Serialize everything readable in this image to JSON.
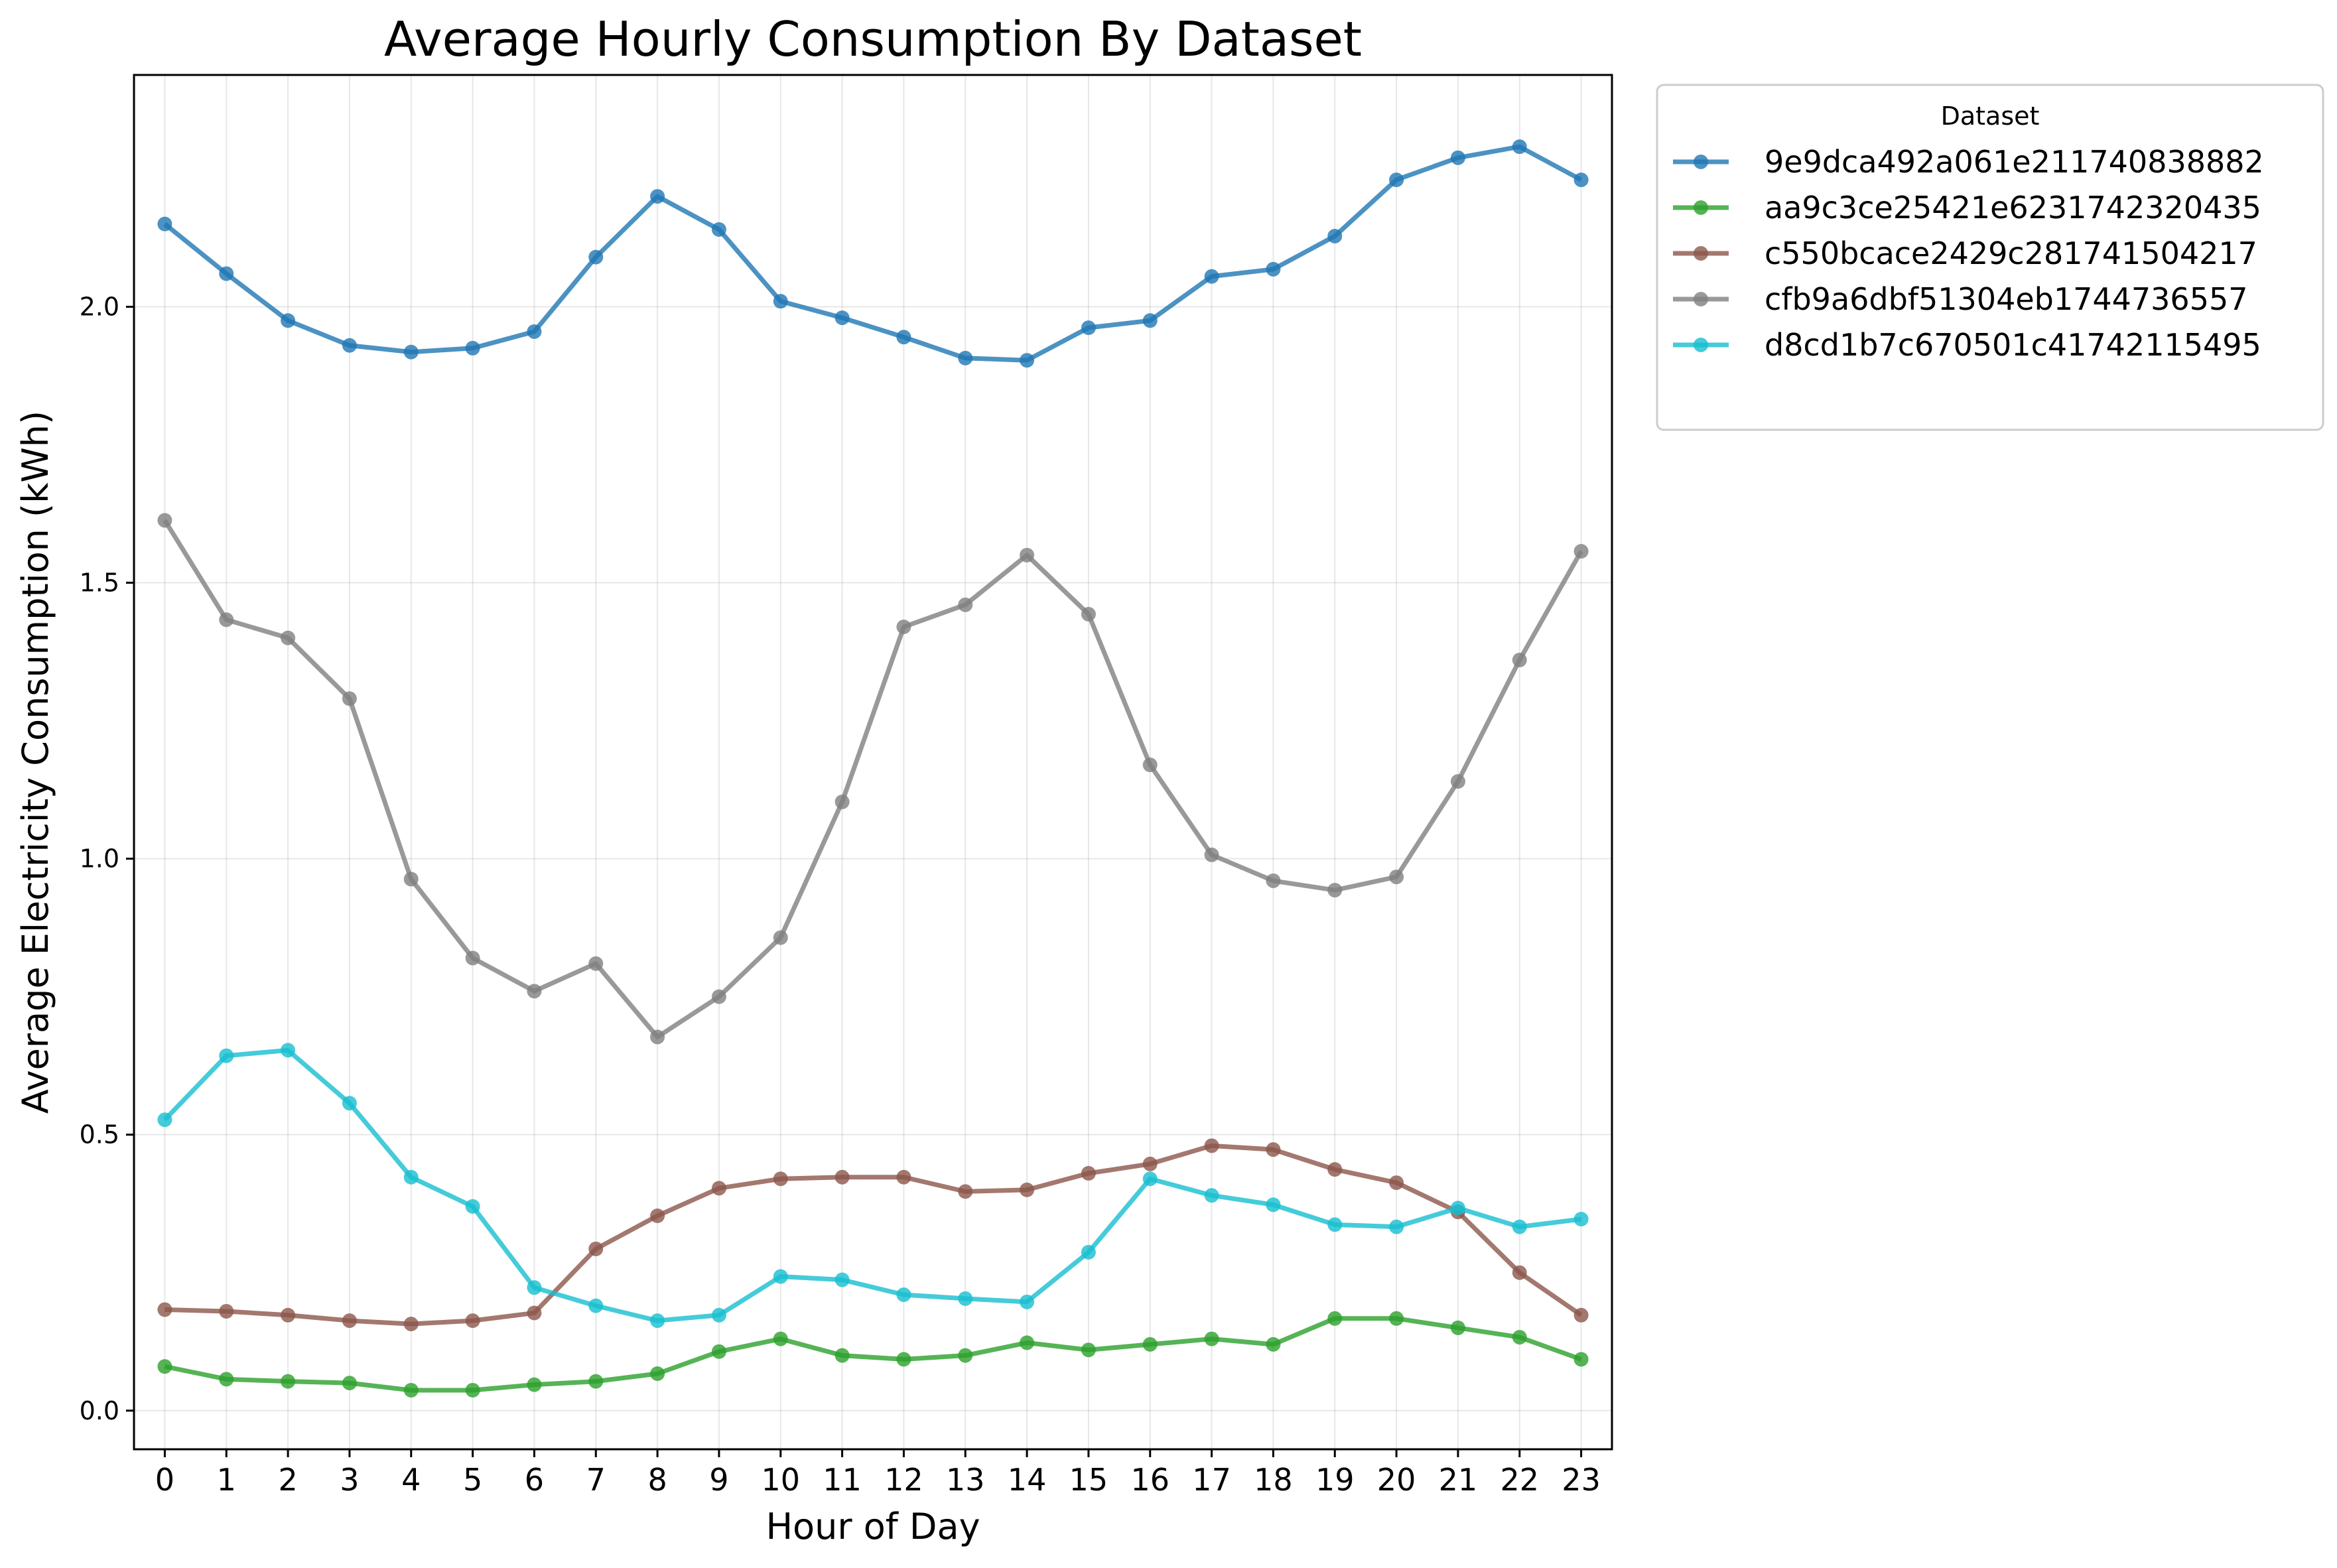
{
  "chart_data": {
    "type": "line",
    "title": "Average Hourly Consumption By Dataset",
    "xlabel": "Hour of Day",
    "ylabel": "Average Electricity Consumption (kWh)",
    "x": [
      0,
      1,
      2,
      3,
      4,
      5,
      6,
      7,
      8,
      9,
      10,
      11,
      12,
      13,
      14,
      15,
      16,
      17,
      18,
      19,
      20,
      21,
      22,
      23
    ],
    "x_tick_labels": [
      "0",
      "1",
      "2",
      "3",
      "4",
      "5",
      "6",
      "7",
      "8",
      "9",
      "10",
      "11",
      "12",
      "13",
      "14",
      "15",
      "16",
      "17",
      "18",
      "19",
      "20",
      "21",
      "22",
      "23"
    ],
    "y_ticks": [
      0.0,
      0.5,
      1.0,
      1.5,
      2.0
    ],
    "y_tick_labels": [
      "0.0",
      "0.5",
      "1.0",
      "1.5",
      "2.0"
    ],
    "xlim": [
      -0.5,
      23.5
    ],
    "ylim": [
      -0.07,
      2.42
    ],
    "grid": true,
    "legend": {
      "title": "Dataset",
      "placement": "outside upper right"
    },
    "series": [
      {
        "name": "9e9dca492a061e211740838882",
        "color": "#1f77b4",
        "values": [
          2.15,
          2.06,
          1.975,
          1.93,
          1.918,
          1.925,
          1.955,
          2.09,
          2.2,
          2.14,
          2.01,
          1.98,
          1.945,
          1.907,
          1.903,
          1.962,
          1.975,
          2.055,
          2.068,
          2.128,
          2.23,
          2.27,
          2.29,
          2.23
        ]
      },
      {
        "name": "aa9c3ce25421e6231742320435",
        "color": "#2ca02c",
        "values": [
          0.08,
          0.057,
          0.053,
          0.05,
          0.037,
          0.037,
          0.047,
          0.053,
          0.067,
          0.107,
          0.13,
          0.1,
          0.093,
          0.1,
          0.123,
          0.11,
          0.12,
          0.13,
          0.12,
          0.167,
          0.167,
          0.15,
          0.133,
          0.093
        ]
      },
      {
        "name": "c550bcace2429c281741504217",
        "color": "#8c564b",
        "values": [
          0.183,
          0.18,
          0.173,
          0.163,
          0.157,
          0.163,
          0.177,
          0.293,
          0.353,
          0.403,
          0.42,
          0.423,
          0.423,
          0.397,
          0.4,
          0.43,
          0.447,
          0.48,
          0.473,
          0.437,
          0.413,
          0.36,
          0.25,
          0.173
        ]
      },
      {
        "name": "cfb9a6dbf51304eb1744736557",
        "color": "#7f7f7f",
        "values": [
          1.613,
          1.433,
          1.4,
          1.29,
          0.963,
          0.82,
          0.76,
          0.81,
          0.677,
          0.75,
          0.857,
          1.103,
          1.42,
          1.46,
          1.55,
          1.443,
          1.17,
          1.007,
          0.96,
          0.943,
          0.967,
          1.14,
          1.36,
          1.557
        ]
      },
      {
        "name": "d8cd1b7c670501c41742115495",
        "color": "#17becf",
        "values": [
          0.527,
          0.643,
          0.653,
          0.557,
          0.423,
          0.37,
          0.223,
          0.19,
          0.163,
          0.173,
          0.243,
          0.237,
          0.21,
          0.203,
          0.197,
          0.287,
          0.42,
          0.39,
          0.373,
          0.337,
          0.333,
          0.367,
          0.333,
          0.347
        ]
      }
    ]
  }
}
